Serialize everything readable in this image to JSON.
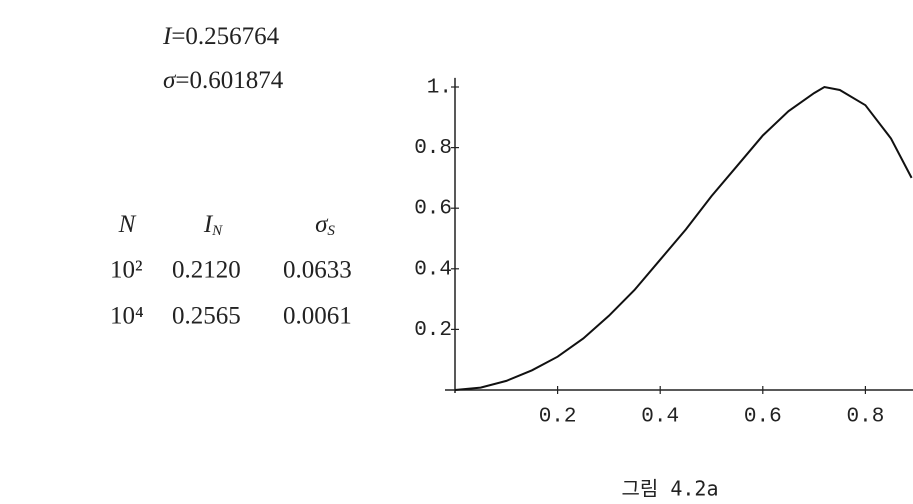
{
  "results": [
    {
      "symbol": "I",
      "text": "=0.256764"
    },
    {
      "symbol": "σ",
      "text": "=0.601874"
    }
  ],
  "table": {
    "header": [
      {
        "text": "N"
      },
      {
        "text": "I",
        "sub": "N"
      },
      {
        "text": "σ",
        "sub": "S"
      }
    ],
    "rows": [
      [
        "10²",
        "0.2120",
        "0.0633"
      ],
      [
        "10⁴",
        "0.2565",
        "0.0061"
      ]
    ]
  },
  "caption": "그림 4.2a",
  "chart_data": {
    "type": "line",
    "color": "#111111",
    "x": [
      0,
      0.05,
      0.1,
      0.15,
      0.2,
      0.25,
      0.3,
      0.35,
      0.4,
      0.45,
      0.5,
      0.55,
      0.6,
      0.65,
      0.7,
      0.72,
      0.75,
      0.8,
      0.85,
      0.89
    ],
    "values": [
      0,
      0.008,
      0.03,
      0.065,
      0.11,
      0.17,
      0.245,
      0.33,
      0.43,
      0.53,
      0.64,
      0.74,
      0.84,
      0.92,
      0.98,
      1.0,
      0.99,
      0.94,
      0.83,
      0.7
    ],
    "xlim": [
      0,
      0.893
    ],
    "ylim": [
      0,
      1.03
    ],
    "xticks": [
      0.2,
      0.4,
      0.6,
      0.8
    ],
    "yticks": [
      0.2,
      0.4,
      0.6,
      0.8,
      {
        "value": 1,
        "label": "1."
      }
    ]
  }
}
